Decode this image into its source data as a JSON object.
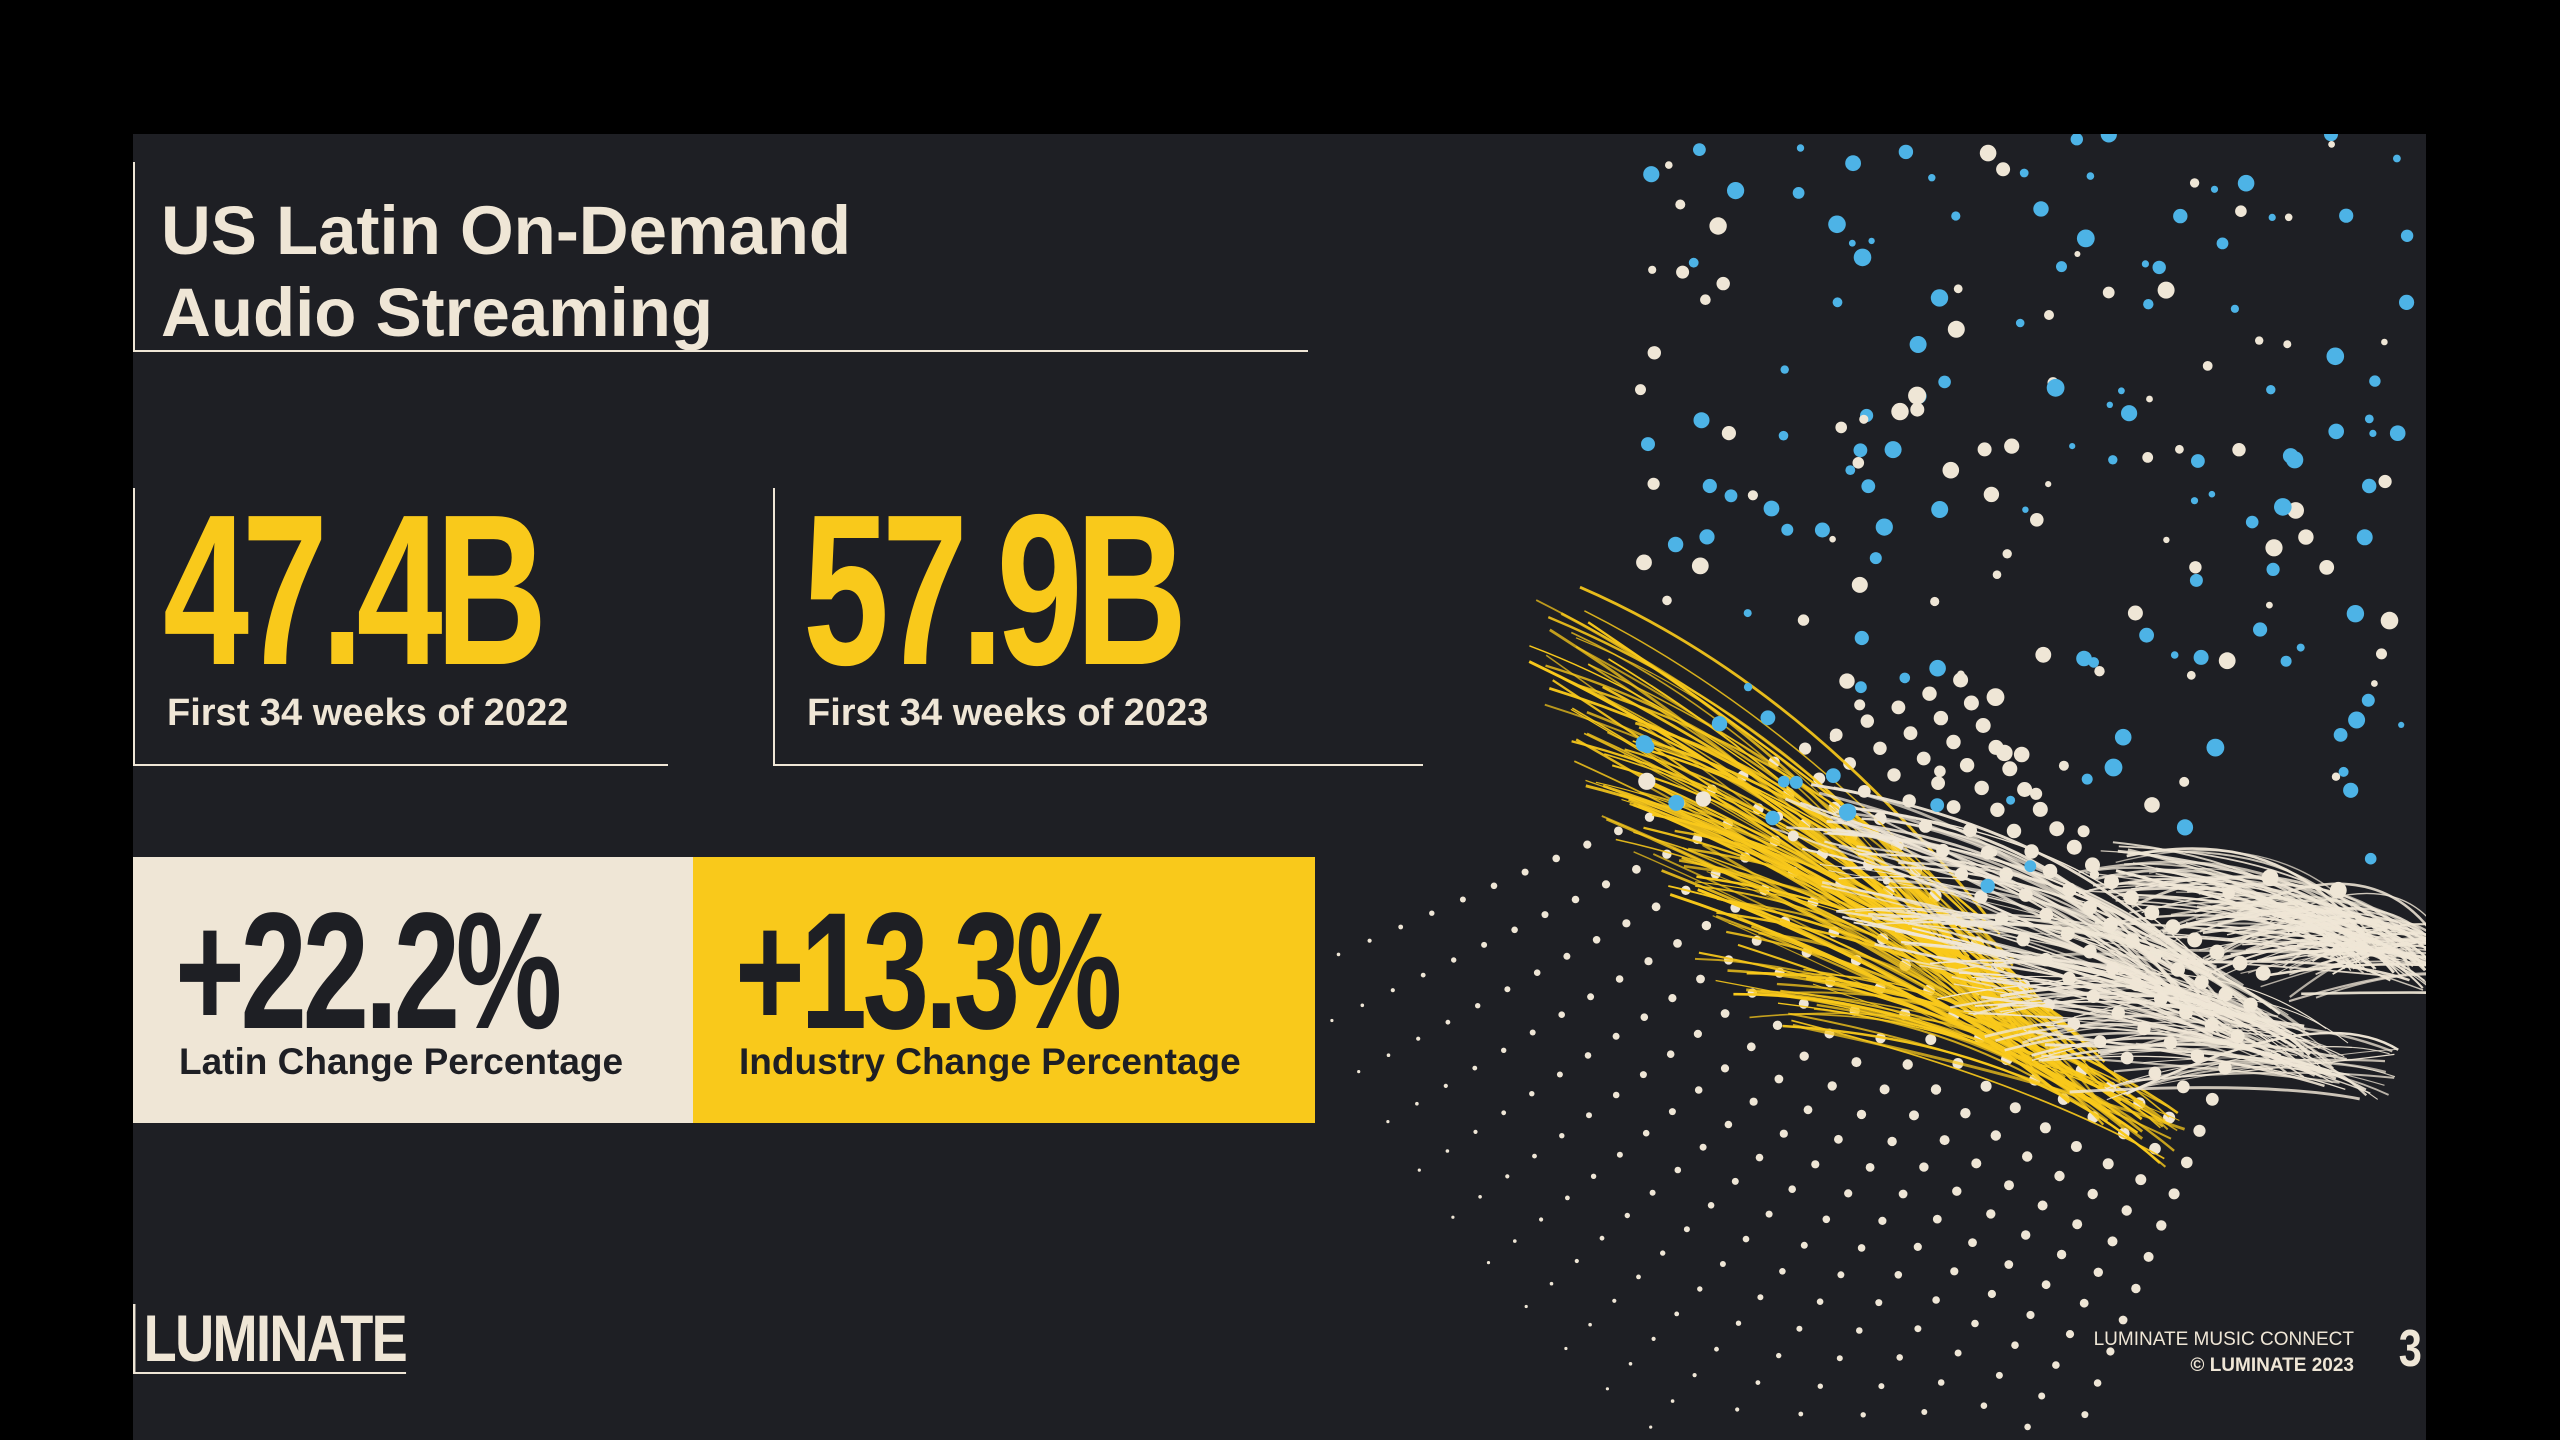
{
  "title": {
    "line1": "US Latin On-Demand",
    "line2": "Audio Streaming"
  },
  "stats": [
    {
      "value": "47.4B",
      "caption": "First 34 weeks of 2022"
    },
    {
      "value": "57.9B",
      "caption": "First 34 weeks of 2023"
    }
  ],
  "changes": [
    {
      "value": "+22.2%",
      "caption": "Latin Change Percentage"
    },
    {
      "value": "+13.3%",
      "caption": "Industry Change Percentage"
    }
  ],
  "brand": {
    "logo": "LUMINATE"
  },
  "footer": {
    "line1": "LUMINATE MUSIC CONNECT",
    "line2": "© LUMINATE 2023",
    "page": "3"
  },
  "colors": {
    "background": "#1e1f24",
    "accent_yellow": "#f9c91b",
    "cream": "#efe6d6",
    "accent_blue": "#4db3e6"
  }
}
